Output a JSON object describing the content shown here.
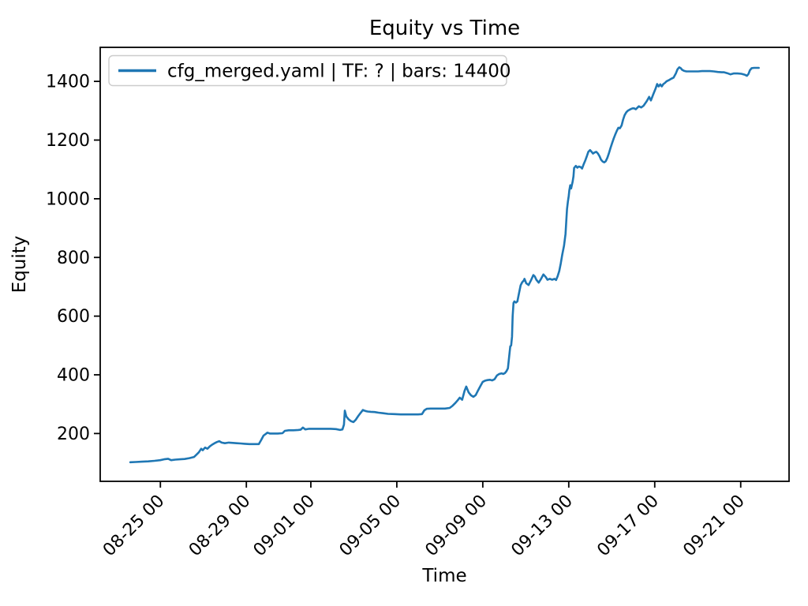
{
  "page": {
    "background": "#ffffff",
    "text_color": "#000000"
  },
  "chart_data": {
    "type": "line",
    "title": "Equity vs Time",
    "xlabel": "Time",
    "ylabel": "Equity",
    "grid": false,
    "legend": {
      "position": "upper left",
      "border_color": "#cccccc",
      "entries": [
        {
          "label": "cfg_merged.yaml | TF: ? | bars: 14400",
          "color": "#1f77b4"
        }
      ]
    },
    "x_axis": {
      "unit": "days since 08-25 00",
      "lim": [
        -2.8,
        29.25
      ],
      "ticks": [
        {
          "label": "08-25 00",
          "offset": 0
        },
        {
          "label": "08-29 00",
          "offset": 4
        },
        {
          "label": "09-01 00",
          "offset": 7
        },
        {
          "label": "09-05 00",
          "offset": 11
        },
        {
          "label": "09-09 00",
          "offset": 15
        },
        {
          "label": "09-13 00",
          "offset": 19
        },
        {
          "label": "09-17 00",
          "offset": 23
        },
        {
          "label": "09-21 00",
          "offset": 27
        }
      ]
    },
    "y_axis": {
      "lim": [
        37,
        1516
      ],
      "ticks": [
        200,
        400,
        600,
        800,
        1000,
        1200,
        1400
      ]
    },
    "series": [
      {
        "name": "cfg_merged.yaml | TF: ? | bars: 14400",
        "color": "#1f77b4",
        "line_width": 2.6,
        "points": [
          [
            -1.4,
            102
          ],
          [
            -1.15,
            103
          ],
          [
            -0.86,
            104
          ],
          [
            -0.56,
            105
          ],
          [
            -0.27,
            107
          ],
          [
            -0.01,
            109
          ],
          [
            0.17,
            112
          ],
          [
            0.36,
            114
          ],
          [
            0.5,
            109
          ],
          [
            0.69,
            111
          ],
          [
            0.91,
            112
          ],
          [
            1.13,
            113
          ],
          [
            1.35,
            116
          ],
          [
            1.57,
            120
          ],
          [
            1.68,
            128
          ],
          [
            1.79,
            136
          ],
          [
            1.9,
            148
          ],
          [
            1.97,
            143
          ],
          [
            2.08,
            152
          ],
          [
            2.19,
            148
          ],
          [
            2.3,
            156
          ],
          [
            2.41,
            162
          ],
          [
            2.52,
            167
          ],
          [
            2.63,
            171
          ],
          [
            2.74,
            174
          ],
          [
            2.85,
            169
          ],
          [
            3.0,
            167
          ],
          [
            3.18,
            169
          ],
          [
            3.37,
            168
          ],
          [
            3.55,
            167
          ],
          [
            3.73,
            166
          ],
          [
            3.92,
            165
          ],
          [
            4.14,
            164
          ],
          [
            4.36,
            164
          ],
          [
            4.58,
            164
          ],
          [
            4.69,
            178
          ],
          [
            4.8,
            193
          ],
          [
            4.91,
            199
          ],
          [
            4.98,
            203
          ],
          [
            5.09,
            200
          ],
          [
            5.24,
            200
          ],
          [
            5.46,
            200
          ],
          [
            5.68,
            201
          ],
          [
            5.79,
            209
          ],
          [
            5.97,
            211
          ],
          [
            6.19,
            211
          ],
          [
            6.41,
            212
          ],
          [
            6.52,
            213
          ],
          [
            6.63,
            220
          ],
          [
            6.74,
            214
          ],
          [
            6.92,
            216
          ],
          [
            7.15,
            216
          ],
          [
            7.4,
            216
          ],
          [
            7.66,
            216
          ],
          [
            7.92,
            216
          ],
          [
            8.17,
            215
          ],
          [
            8.36,
            212
          ],
          [
            8.47,
            214
          ],
          [
            8.54,
            230
          ],
          [
            8.58,
            278
          ],
          [
            8.65,
            258
          ],
          [
            8.76,
            248
          ],
          [
            8.87,
            242
          ],
          [
            8.98,
            239
          ],
          [
            9.09,
            247
          ],
          [
            9.2,
            259
          ],
          [
            9.31,
            270
          ],
          [
            9.42,
            280
          ],
          [
            9.53,
            277
          ],
          [
            9.64,
            275
          ],
          [
            9.79,
            274
          ],
          [
            9.97,
            273
          ],
          [
            10.15,
            271
          ],
          [
            10.37,
            269
          ],
          [
            10.59,
            267
          ],
          [
            10.89,
            266
          ],
          [
            11.18,
            265
          ],
          [
            11.48,
            265
          ],
          [
            11.77,
            265
          ],
          [
            11.99,
            265
          ],
          [
            12.17,
            266
          ],
          [
            12.28,
            279
          ],
          [
            12.39,
            284
          ],
          [
            12.58,
            285
          ],
          [
            12.8,
            285
          ],
          [
            13.02,
            285
          ],
          [
            13.24,
            285
          ],
          [
            13.46,
            287
          ],
          [
            13.6,
            295
          ],
          [
            13.71,
            303
          ],
          [
            13.82,
            312
          ],
          [
            13.93,
            322
          ],
          [
            14.04,
            315
          ],
          [
            14.15,
            345
          ],
          [
            14.23,
            360
          ],
          [
            14.34,
            340
          ],
          [
            14.45,
            330
          ],
          [
            14.56,
            325
          ],
          [
            14.67,
            331
          ],
          [
            14.78,
            347
          ],
          [
            14.89,
            362
          ],
          [
            15.0,
            376
          ],
          [
            15.11,
            380
          ],
          [
            15.22,
            382
          ],
          [
            15.33,
            383
          ],
          [
            15.44,
            381
          ],
          [
            15.55,
            385
          ],
          [
            15.66,
            398
          ],
          [
            15.77,
            403
          ],
          [
            15.88,
            405
          ],
          [
            15.95,
            403
          ],
          [
            16.03,
            406
          ],
          [
            16.1,
            412
          ],
          [
            16.17,
            422
          ],
          [
            16.21,
            450
          ],
          [
            16.25,
            478
          ],
          [
            16.28,
            497
          ],
          [
            16.32,
            500
          ],
          [
            16.36,
            530
          ],
          [
            16.39,
            600
          ],
          [
            16.43,
            645
          ],
          [
            16.47,
            650
          ],
          [
            16.54,
            646
          ],
          [
            16.61,
            650
          ],
          [
            16.69,
            680
          ],
          [
            16.76,
            705
          ],
          [
            16.83,
            715
          ],
          [
            16.91,
            722
          ],
          [
            16.94,
            727
          ],
          [
            17.02,
            712
          ],
          [
            17.13,
            706
          ],
          [
            17.24,
            722
          ],
          [
            17.35,
            740
          ],
          [
            17.42,
            735
          ],
          [
            17.49,
            724
          ],
          [
            17.6,
            714
          ],
          [
            17.71,
            727
          ],
          [
            17.82,
            742
          ],
          [
            17.93,
            733
          ],
          [
            18.01,
            724
          ],
          [
            18.12,
            727
          ],
          [
            18.23,
            724
          ],
          [
            18.34,
            727
          ],
          [
            18.41,
            723
          ],
          [
            18.48,
            735
          ],
          [
            18.56,
            754
          ],
          [
            18.63,
            780
          ],
          [
            18.7,
            810
          ],
          [
            18.78,
            840
          ],
          [
            18.85,
            880
          ],
          [
            18.89,
            930
          ],
          [
            18.92,
            965
          ],
          [
            18.96,
            990
          ],
          [
            19.0,
            1010
          ],
          [
            19.03,
            1030
          ],
          [
            19.07,
            1046
          ],
          [
            19.11,
            1035
          ],
          [
            19.18,
            1058
          ],
          [
            19.22,
            1077
          ],
          [
            19.25,
            1105
          ],
          [
            19.33,
            1112
          ],
          [
            19.4,
            1106
          ],
          [
            19.47,
            1110
          ],
          [
            19.55,
            1108
          ],
          [
            19.62,
            1103
          ],
          [
            19.69,
            1117
          ],
          [
            19.77,
            1131
          ],
          [
            19.84,
            1145
          ],
          [
            19.91,
            1160
          ],
          [
            19.99,
            1166
          ],
          [
            20.06,
            1160
          ],
          [
            20.13,
            1154
          ],
          [
            20.21,
            1158
          ],
          [
            20.28,
            1160
          ],
          [
            20.36,
            1154
          ],
          [
            20.43,
            1145
          ],
          [
            20.5,
            1133
          ],
          [
            20.58,
            1127
          ],
          [
            20.65,
            1124
          ],
          [
            20.72,
            1128
          ],
          [
            20.8,
            1140
          ],
          [
            20.87,
            1155
          ],
          [
            20.94,
            1172
          ],
          [
            21.02,
            1190
          ],
          [
            21.09,
            1205
          ],
          [
            21.16,
            1218
          ],
          [
            21.24,
            1232
          ],
          [
            21.31,
            1242
          ],
          [
            21.38,
            1240
          ],
          [
            21.46,
            1250
          ],
          [
            21.53,
            1270
          ],
          [
            21.6,
            1285
          ],
          [
            21.68,
            1295
          ],
          [
            21.75,
            1300
          ],
          [
            21.82,
            1303
          ],
          [
            21.9,
            1306
          ],
          [
            21.97,
            1308
          ],
          [
            22.04,
            1308
          ],
          [
            22.12,
            1305
          ],
          [
            22.19,
            1310
          ],
          [
            22.26,
            1315
          ],
          [
            22.37,
            1311
          ],
          [
            22.48,
            1317
          ],
          [
            22.63,
            1333
          ],
          [
            22.74,
            1347
          ],
          [
            22.82,
            1335
          ],
          [
            22.93,
            1356
          ],
          [
            23.04,
            1375
          ],
          [
            23.11,
            1391
          ],
          [
            23.18,
            1383
          ],
          [
            23.26,
            1390
          ],
          [
            23.33,
            1383
          ],
          [
            23.4,
            1391
          ],
          [
            23.48,
            1395
          ],
          [
            23.55,
            1400
          ],
          [
            23.66,
            1404
          ],
          [
            23.77,
            1409
          ],
          [
            23.88,
            1413
          ],
          [
            23.99,
            1428
          ],
          [
            24.06,
            1441
          ],
          [
            24.14,
            1448
          ],
          [
            24.21,
            1445
          ],
          [
            24.28,
            1439
          ],
          [
            24.36,
            1436
          ],
          [
            24.47,
            1434
          ],
          [
            24.65,
            1434
          ],
          [
            24.83,
            1434
          ],
          [
            25.02,
            1434
          ],
          [
            25.2,
            1435
          ],
          [
            25.38,
            1435
          ],
          [
            25.57,
            1435
          ],
          [
            25.75,
            1434
          ],
          [
            25.93,
            1432
          ],
          [
            26.12,
            1431
          ],
          [
            26.23,
            1431
          ],
          [
            26.37,
            1428
          ],
          [
            26.52,
            1424
          ],
          [
            26.67,
            1427
          ],
          [
            26.85,
            1427
          ],
          [
            27.03,
            1426
          ],
          [
            27.18,
            1423
          ],
          [
            27.29,
            1419
          ],
          [
            27.36,
            1425
          ],
          [
            27.43,
            1438
          ],
          [
            27.51,
            1445
          ],
          [
            27.62,
            1446
          ],
          [
            27.73,
            1446
          ],
          [
            27.84,
            1446
          ]
        ]
      }
    ]
  }
}
